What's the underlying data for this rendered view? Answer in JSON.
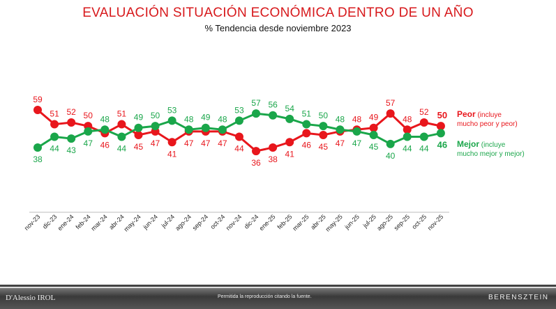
{
  "chart_data": {
    "type": "line",
    "title": "EVALUACIÓN SITUACIÓN ECONÓMICA DENTRO DE UN AÑO",
    "subtitle": "% Tendencia desde noviembre 2023",
    "categories": [
      "nov-23",
      "dic-23",
      "ene-24",
      "feb-24",
      "mar-24",
      "abr-24",
      "may-24",
      "jun-24",
      "jul-24",
      "ago-24",
      "sep-24",
      "oct-24",
      "nov-24",
      "dic-24",
      "ene-25",
      "feb-25",
      "mar-25",
      "abr-25",
      "may-25",
      "jun-25",
      "jul-25",
      "ago-25",
      "sep-25",
      "oct-25",
      "nov-25"
    ],
    "series": [
      {
        "name": "Peor",
        "legend_detail": "(incluye",
        "legend_detail2": "mucho peor y peor)",
        "color": "#e8161c",
        "values": [
          59,
          51,
          52,
          50,
          46,
          51,
          45,
          47,
          41,
          47,
          47,
          47,
          44,
          36,
          38,
          41,
          46,
          45,
          47,
          48,
          49,
          57,
          48,
          52,
          50
        ]
      },
      {
        "name": "Mejor",
        "legend_detail": "(incluye",
        "legend_detail2": "mucho mejor y mejor)",
        "color": "#1aa64a",
        "values": [
          38,
          44,
          43,
          47,
          48,
          44,
          49,
          50,
          53,
          48,
          49,
          48,
          53,
          57,
          56,
          54,
          51,
          50,
          48,
          47,
          45,
          40,
          44,
          44,
          46
        ]
      }
    ],
    "legend": "right",
    "grid": false
  },
  "footer": {
    "left_logo": "D'Alessio IROL",
    "center": "Permitida la reproducción citando la fuente.",
    "right_logo": "BERENSZTEIN"
  }
}
